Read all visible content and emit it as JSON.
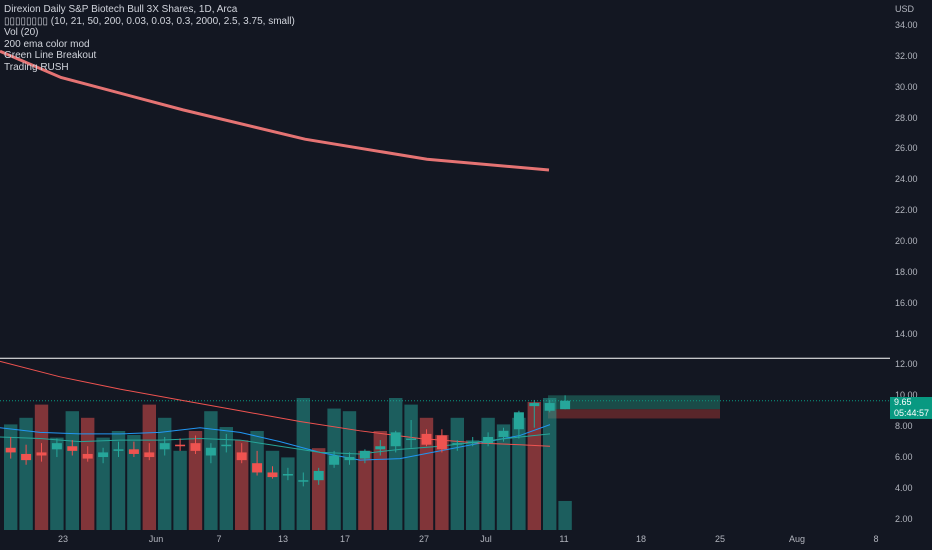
{
  "legend": {
    "title": "Direxion Daily S&P Biotech Bull 3X Shares, 1D, Arca",
    "indicator_params": "▯▯▯▯▯▯▯▯ (10, 21, 50, 200, 0.03, 0.03, 0.3, 2000, 2.5, 3.75, small)",
    "vol": "Vol (20)",
    "ema": "200 ema color mod",
    "green_line": "Green Line Breakout",
    "trading": "Trading RUSH"
  },
  "price_scale": {
    "currency": "USD",
    "labels": [
      "34.00",
      "32.00",
      "30.00",
      "28.00",
      "26.00",
      "24.00",
      "22.00",
      "20.00",
      "18.00",
      "16.00",
      "14.00",
      "12.00",
      "10.00",
      "8.00",
      "6.00",
      "4.00",
      "2.00"
    ]
  },
  "price_tag": {
    "price": "9.65",
    "countdown": "05:44:57"
  },
  "time_scale": {
    "labels": [
      "23",
      "Jun",
      "7",
      "13",
      "17",
      "27",
      "Jul",
      "11",
      "18",
      "25",
      "Aug",
      "8"
    ]
  },
  "colors": {
    "up": "#26a69a",
    "down": "#ef5350",
    "ema200": "#e57373",
    "ma_blue": "#2196f3",
    "hline": "#ffffff",
    "bg": "#131722"
  },
  "chart_data": {
    "type": "candlestick",
    "candles": [
      {
        "o": 6.6,
        "h": 7.3,
        "l": 5.9,
        "c": 6.3
      },
      {
        "o": 6.2,
        "h": 6.8,
        "l": 5.5,
        "c": 5.8
      },
      {
        "o": 6.3,
        "h": 6.9,
        "l": 5.7,
        "c": 6.1
      },
      {
        "o": 6.5,
        "h": 7.2,
        "l": 6.0,
        "c": 6.9
      },
      {
        "o": 6.7,
        "h": 7.1,
        "l": 6.1,
        "c": 6.4
      },
      {
        "o": 6.2,
        "h": 6.7,
        "l": 5.7,
        "c": 5.9
      },
      {
        "o": 6.0,
        "h": 6.6,
        "l": 5.6,
        "c": 6.3
      },
      {
        "o": 6.4,
        "h": 7.0,
        "l": 6.0,
        "c": 6.5
      },
      {
        "o": 6.5,
        "h": 7.0,
        "l": 6.0,
        "c": 6.2
      },
      {
        "o": 6.3,
        "h": 6.9,
        "l": 5.8,
        "c": 6.0
      },
      {
        "o": 6.5,
        "h": 7.3,
        "l": 6.1,
        "c": 6.9
      },
      {
        "o": 6.8,
        "h": 7.2,
        "l": 6.4,
        "c": 6.7
      },
      {
        "o": 6.9,
        "h": 7.4,
        "l": 6.2,
        "c": 6.4
      },
      {
        "o": 6.1,
        "h": 6.9,
        "l": 5.6,
        "c": 6.6
      },
      {
        "o": 6.8,
        "h": 7.5,
        "l": 6.3,
        "c": 6.8
      },
      {
        "o": 6.3,
        "h": 6.9,
        "l": 5.6,
        "c": 5.8
      },
      {
        "o": 5.6,
        "h": 6.4,
        "l": 4.8,
        "c": 5.0
      },
      {
        "o": 5.0,
        "h": 5.4,
        "l": 4.6,
        "c": 4.7
      },
      {
        "o": 4.9,
        "h": 5.3,
        "l": 4.5,
        "c": 4.9
      },
      {
        "o": 4.4,
        "h": 5.0,
        "l": 4.1,
        "c": 4.5
      },
      {
        "o": 4.5,
        "h": 5.3,
        "l": 4.2,
        "c": 5.1
      },
      {
        "o": 5.5,
        "h": 6.4,
        "l": 5.3,
        "c": 6.1
      },
      {
        "o": 5.8,
        "h": 6.3,
        "l": 5.5,
        "c": 6.0
      },
      {
        "o": 5.9,
        "h": 6.5,
        "l": 5.6,
        "c": 6.4
      },
      {
        "o": 6.5,
        "h": 7.1,
        "l": 6.1,
        "c": 6.7
      },
      {
        "o": 6.7,
        "h": 7.7,
        "l": 6.3,
        "c": 7.6
      },
      {
        "o": 7.2,
        "h": 8.4,
        "l": 6.6,
        "c": 7.2
      },
      {
        "o": 7.5,
        "h": 7.8,
        "l": 6.7,
        "c": 6.8
      },
      {
        "o": 7.4,
        "h": 7.8,
        "l": 6.3,
        "c": 6.5
      },
      {
        "o": 6.8,
        "h": 7.1,
        "l": 6.4,
        "c": 6.9
      },
      {
        "o": 7.0,
        "h": 7.3,
        "l": 6.7,
        "c": 7.0
      },
      {
        "o": 6.9,
        "h": 7.6,
        "l": 6.7,
        "c": 7.3
      },
      {
        "o": 7.3,
        "h": 7.9,
        "l": 7.0,
        "c": 7.7
      },
      {
        "o": 7.8,
        "h": 9.0,
        "l": 7.2,
        "c": 8.9
      },
      {
        "o": 9.3,
        "h": 9.7,
        "l": 7.9,
        "c": 9.5
      },
      {
        "o": 9.0,
        "h": 9.7,
        "l": 8.9,
        "c": 9.5
      },
      {
        "o": 9.1,
        "h": 10.0,
        "l": 9.1,
        "c": 9.65
      }
    ],
    "volume_dir": [
      "up",
      "up",
      "down",
      "up",
      "up",
      "down",
      "up",
      "up",
      "up",
      "down",
      "up",
      "up",
      "down",
      "up",
      "up",
      "down",
      "up",
      "up",
      "up",
      "up",
      "down",
      "up",
      "up",
      "down",
      "down",
      "up",
      "up",
      "down",
      "down",
      "up",
      "up",
      "up",
      "up",
      "up",
      "down",
      "up",
      "up"
    ],
    "volume_rel": [
      0.8,
      0.85,
      0.95,
      0.7,
      0.9,
      0.85,
      0.7,
      0.75,
      0.72,
      0.95,
      0.85,
      0.6,
      0.75,
      0.9,
      0.78,
      0.68,
      0.75,
      0.6,
      0.55,
      1.0,
      0.62,
      0.92,
      0.9,
      0.6,
      0.75,
      1.0,
      0.95,
      0.85,
      0.72,
      0.85,
      0.68,
      0.85,
      0.8,
      0.85,
      0.97,
      1.0,
      0.22
    ],
    "ema200": [
      [
        0,
        32.3
      ],
      [
        20,
        30.6
      ],
      [
        60,
        28.5
      ],
      [
        100,
        26.6
      ],
      [
        140,
        25.3
      ],
      [
        180,
        24.6
      ]
    ],
    "hline": 12.4,
    "ylim": [
      1.0,
      35.5
    ],
    "zone_green": [
      9.1,
      10.0
    ],
    "zone_red": [
      8.5,
      9.1
    ]
  }
}
